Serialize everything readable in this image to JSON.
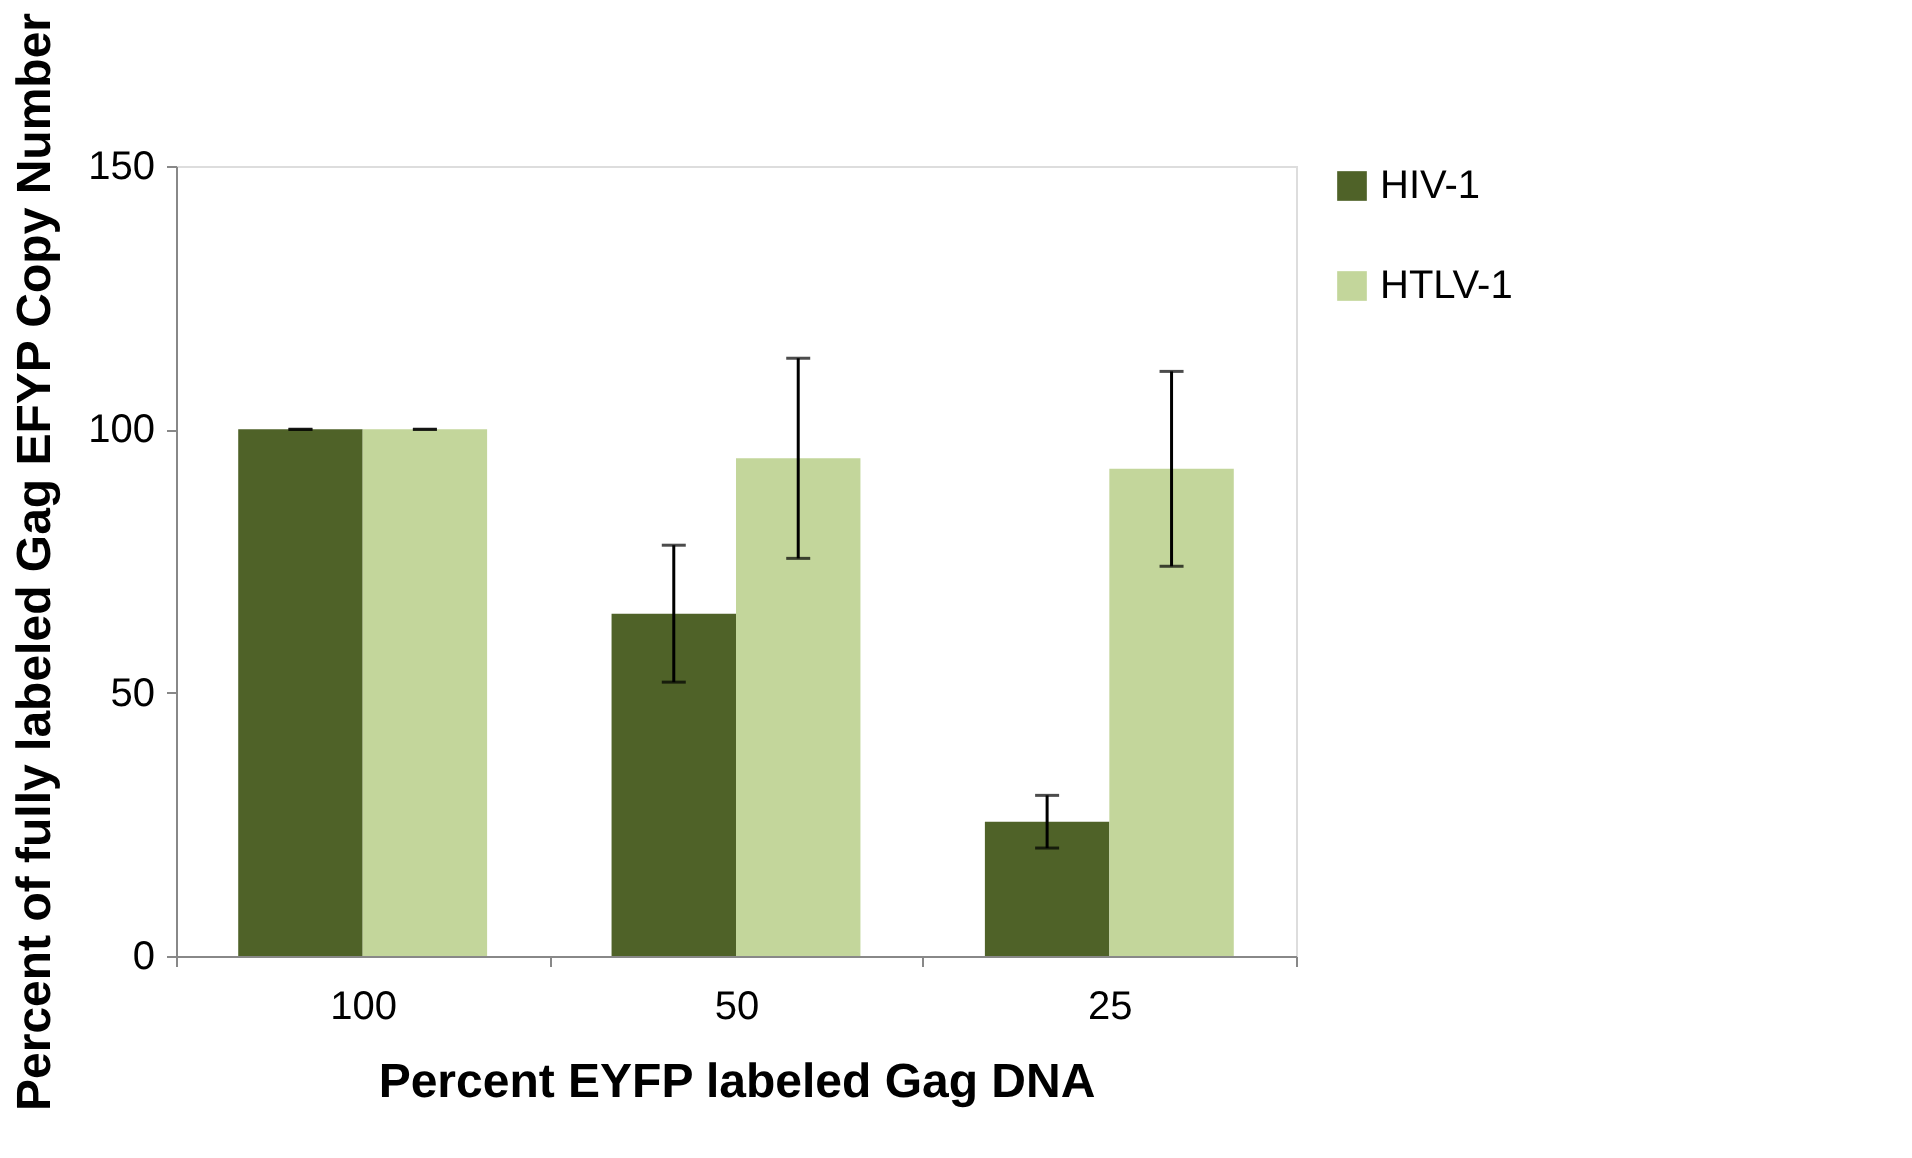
{
  "chart_data": {
    "type": "bar",
    "xlabel": "Percent EYFP labeled Gag DNA",
    "ylabel": "Percent of fully labeled Gag EFYP Copy Number",
    "categories": [
      "100",
      "50",
      "25"
    ],
    "series": [
      {
        "name": "HIV-1",
        "color": "#4f6228",
        "values": [
          100,
          65,
          25.5
        ],
        "errors": [
          0,
          13,
          5
        ]
      },
      {
        "name": "HTLV-1",
        "color": "#c3d69b",
        "values": [
          100,
          94.5,
          92.5
        ],
        "errors": [
          0,
          19,
          18.5
        ]
      }
    ],
    "ylim": [
      0,
      150
    ],
    "yticks": [
      0,
      50,
      100,
      150
    ],
    "grid": false,
    "legend": "right"
  }
}
